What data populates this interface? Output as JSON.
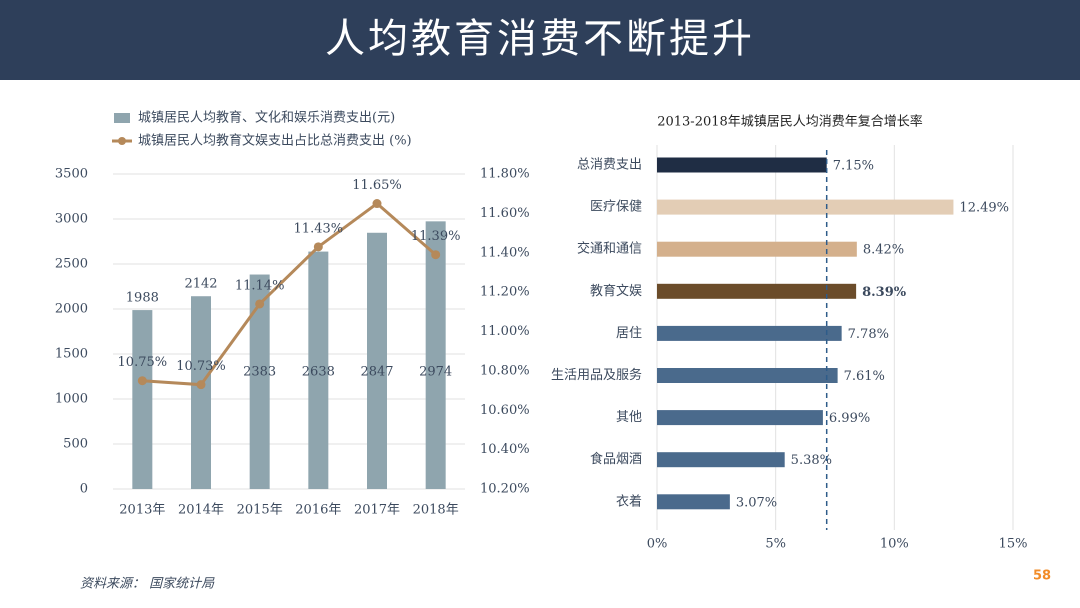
{
  "header": {
    "title": "人均教育消费不断提升"
  },
  "chart_data": [
    {
      "type": "bar",
      "categories": [
        "2013年",
        "2014年",
        "2015年",
        "2016年",
        "2017年",
        "2018年"
      ],
      "series": [
        {
          "name": "城镇居民人均教育、文化和娱乐消费支出(元)",
          "color": "#8fa5ae",
          "values": [
            1988,
            2142,
            2383,
            2638,
            2847,
            2974
          ]
        },
        {
          "name": "城镇居民人均教育文娱支出占比总消费支出 (%)",
          "color": "#b5895a",
          "type": "line",
          "axis": "y2",
          "values": [
            10.75,
            10.73,
            11.14,
            11.43,
            11.65,
            11.39
          ],
          "value_labels": [
            "10.75%",
            "10.73%",
            "11.14%",
            "11.43%",
            "11.65%",
            "11.39%"
          ]
        }
      ],
      "ylim": [
        0,
        3500
      ],
      "yticks": [
        0,
        500,
        1000,
        1500,
        2000,
        2500,
        3000,
        3500
      ],
      "y2lim": [
        10.2,
        11.8
      ],
      "y2ticks": [
        {
          "value": 10.2,
          "label": "10.20%"
        },
        {
          "value": 10.4,
          "label": "10.40%"
        },
        {
          "value": 10.6,
          "label": "10.60%"
        },
        {
          "value": 10.8,
          "label": "10.80%"
        },
        {
          "value": 11.0,
          "label": "11.00%"
        },
        {
          "value": 11.2,
          "label": "11.20%"
        },
        {
          "value": 11.4,
          "label": "11.40%"
        },
        {
          "value": 11.6,
          "label": "11.60%"
        },
        {
          "value": 11.8,
          "label": "11.80%"
        }
      ],
      "grid": true
    },
    {
      "type": "hbar",
      "title": "2013-2018年城镇居民人均消费年复合增长率",
      "categories": [
        "总消费支出",
        "医疗保健",
        "交通和通信",
        "教育文娱",
        "居住",
        "生活用品及服务",
        "其他",
        "食品烟酒",
        "衣着"
      ],
      "values": [
        7.15,
        12.49,
        8.42,
        8.39,
        7.78,
        7.61,
        6.99,
        5.38,
        3.07
      ],
      "value_labels": [
        "7.15%",
        "12.49%",
        "8.42%",
        "8.39%",
        "7.78%",
        "7.61%",
        "6.99%",
        "5.38%",
        "3.07%"
      ],
      "colors": [
        "#1f2d44",
        "#e3cdb5",
        "#d4b08c",
        "#6b4c2a",
        "#4a6a8c",
        "#4a6a8c",
        "#4a6a8c",
        "#4a6a8c",
        "#4a6a8c"
      ],
      "highlight_index": 3,
      "xlim": [
        0,
        15
      ],
      "xticks": [
        {
          "value": 0,
          "label": "0%"
        },
        {
          "value": 5,
          "label": "5%"
        },
        {
          "value": 10,
          "label": "10%"
        },
        {
          "value": 15,
          "label": "15%"
        }
      ],
      "grid": true
    }
  ],
  "source": "资料来源： 国家统计局",
  "logo": "58"
}
